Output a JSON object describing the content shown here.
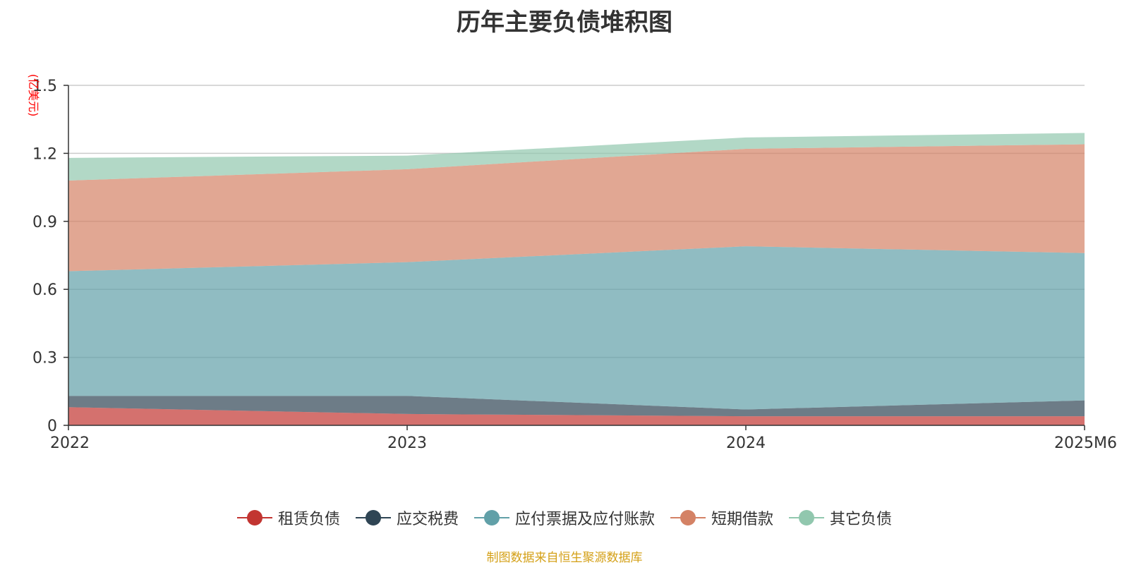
{
  "chart_data": {
    "type": "area",
    "stacked": true,
    "title": "历年主要负债堆积图",
    "ylabel": "(亿美元)",
    "xlabel": "",
    "categories": [
      "2022",
      "2023",
      "2024",
      "2025M6"
    ],
    "ylim": [
      0,
      1.5
    ],
    "yticks": [
      "0",
      "0.3",
      "0.6",
      "0.9",
      "1.2",
      "1.5"
    ],
    "grid": true,
    "legend_position": "bottom",
    "series": [
      {
        "name": "租赁负债",
        "values": [
          0.08,
          0.05,
          0.04,
          0.04
        ],
        "color": "#c23531"
      },
      {
        "name": "应交税费",
        "values": [
          0.05,
          0.08,
          0.03,
          0.07
        ],
        "color": "#2f4554"
      },
      {
        "name": "应付票据及应付账款",
        "values": [
          0.55,
          0.59,
          0.72,
          0.65
        ],
        "color": "#61a0a8"
      },
      {
        "name": "短期借款",
        "values": [
          0.4,
          0.41,
          0.43,
          0.48
        ],
        "color": "#d48265"
      },
      {
        "name": "其它负债",
        "values": [
          0.1,
          0.06,
          0.05,
          0.05
        ],
        "color": "#91c7ae"
      }
    ]
  },
  "footer": {
    "source": "制图数据来自恒生聚源数据库"
  }
}
